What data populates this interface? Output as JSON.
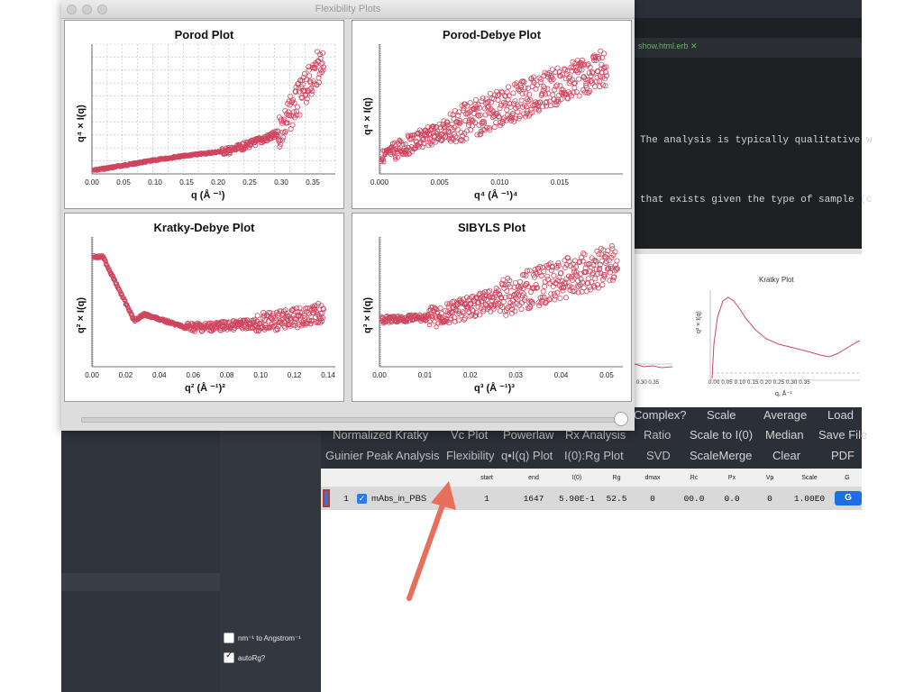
{
  "window": {
    "title": "Flexibility Plots"
  },
  "editor": {
    "tab_label": "show.html.erb ✕",
    "line1": "The analysis is typically qualitative w",
    "line2": "that exists given the type of sample (c"
  },
  "plots": {
    "porod": {
      "title": "Porod Plot",
      "ylabel": "q⁴ × I(q)",
      "xlabel": "q (Å ⁻¹)",
      "ticks": [
        "0.00",
        "0.05",
        "0.10",
        "0.15",
        "0.20",
        "0.25",
        "0.30",
        "0.35"
      ]
    },
    "porod_debye": {
      "title": "Porod-Debye Plot",
      "ylabel": "q⁴ × I(q)",
      "xlabel": "q⁴ (Å ⁻¹)⁴",
      "ticks": [
        "0.000",
        "0.005",
        "0.010",
        "0.015"
      ]
    },
    "kratky_debye": {
      "title": "Kratky-Debye Plot",
      "ylabel": "q² × I(q)",
      "xlabel": "q² (Å ⁻¹)²",
      "ticks": [
        "0.00",
        "0.02",
        "0.04",
        "0.06",
        "0.08",
        "0.10",
        "0.12",
        "0.14"
      ]
    },
    "sibyls": {
      "title": "SIBYLS Plot",
      "ylabel": "q³ × I(q)",
      "xlabel": "q³ (Å ⁻¹)³",
      "ticks": [
        "0.00",
        "0.01",
        "0.02",
        "0.03",
        "0.04",
        "0.05"
      ]
    }
  },
  "kratky_preview": {
    "title": "Kratky Plot",
    "ylabel": "q² × I(q)",
    "xlabel": "q, Å⁻¹",
    "ticks": "0.00  0.05  0.10  0.15  0.20  0.25  0.30  0.35",
    "left_ticks": "0.30  0.35"
  },
  "buttons": {
    "row1": [
      "Complex?",
      "Scale",
      "Average",
      "Load"
    ],
    "row2": [
      "Normalized Kratky",
      "Vc Plot",
      "Powerlaw",
      "Rx Analysis",
      "Ratio",
      "Scale to I(0)",
      "Median",
      "Save File"
    ],
    "row3": [
      "Guinier Peak Analysis",
      "Flexibility",
      "q•I(q) Plot",
      "I(0):Rg Plot",
      "SVD",
      "ScaleMerge",
      "Clear",
      "PDF"
    ]
  },
  "table": {
    "headers": [
      "start",
      "end",
      "I(0)",
      "Rg",
      "dmax",
      "Rc",
      "Px",
      "Vp",
      "Scale",
      "G"
    ],
    "row": {
      "index": "1",
      "name": "mAbs_in_PBS",
      "start": "1",
      "end": "1647",
      "i0": "5.90E-1",
      "rg": "52.5",
      "dmax": "0",
      "rc": "00.0",
      "px": "0.0",
      "vp": "0",
      "scale": "1.00E0",
      "g": "G"
    }
  },
  "options": {
    "ang_label": "nm⁻¹ to Angstrom⁻¹",
    "autorg_label": "autoRg?"
  },
  "colors": {
    "data": "#d0455e",
    "accent": "#1e6fe6",
    "arrow": "#e8705a"
  }
}
